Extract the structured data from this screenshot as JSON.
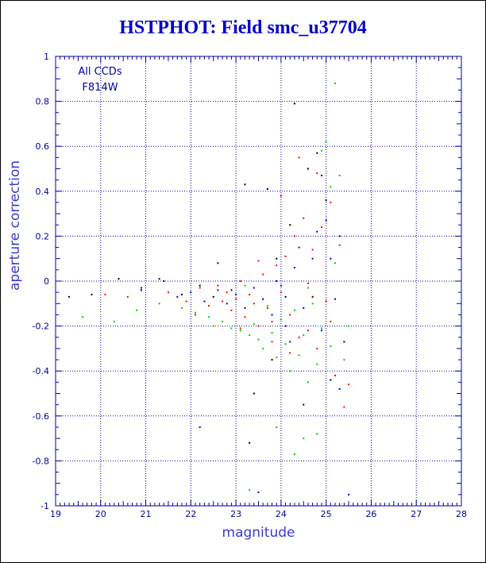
{
  "colors": {
    "axis": "#0000aa",
    "grid": "#0000aa",
    "title": "#0000cc",
    "red": "#ff0000",
    "green": "#00cc00",
    "blue": "#0000cc",
    "black": "#000000"
  },
  "chart_data": {
    "type": "scatter",
    "title": "HSTPHOT: Field smc_u37704",
    "xlabel": "magnitude",
    "ylabel": "aperture correction",
    "xlim": [
      19,
      28
    ],
    "ylim": [
      -1,
      1
    ],
    "x_ticks": [
      "19",
      "20",
      "21",
      "22",
      "23",
      "24",
      "25",
      "26",
      "27",
      "28"
    ],
    "y_ticks": [
      "-1",
      "-0.8",
      "-0.6",
      "-0.4",
      "-0.2",
      "0",
      "0.2",
      "0.4",
      "0.6",
      "0.8",
      "1"
    ],
    "grid": "dotted",
    "annotations": [
      "All CCDs",
      "F814W"
    ],
    "series": [
      {
        "color": "red",
        "points": [
          [
            20.1,
            -0.06
          ],
          [
            20.6,
            -0.07
          ],
          [
            21.5,
            -0.05
          ],
          [
            21.9,
            -0.09
          ],
          [
            22.2,
            -0.03
          ],
          [
            22.4,
            -0.11
          ],
          [
            22.6,
            -0.02
          ],
          [
            22.8,
            -0.05
          ],
          [
            22.9,
            -0.13
          ],
          [
            23.0,
            -0.08
          ],
          [
            23.1,
            0.0
          ],
          [
            23.2,
            -0.16
          ],
          [
            23.3,
            -0.06
          ],
          [
            23.4,
            -0.1
          ],
          [
            23.5,
            -0.2
          ],
          [
            23.6,
            0.03
          ],
          [
            23.7,
            -0.12
          ],
          [
            23.8,
            -0.18
          ],
          [
            23.9,
            0.07
          ],
          [
            24.0,
            -0.05
          ],
          [
            24.1,
            0.11
          ],
          [
            24.2,
            -0.15
          ],
          [
            24.3,
            0.2
          ],
          [
            24.4,
            -0.25
          ],
          [
            24.5,
            0.28
          ],
          [
            24.6,
            -0.01
          ],
          [
            24.7,
            0.14
          ],
          [
            24.8,
            -0.3
          ],
          [
            24.9,
            0.24
          ],
          [
            25.0,
            -0.09
          ],
          [
            25.1,
            0.35
          ],
          [
            25.2,
            -0.42
          ],
          [
            25.3,
            0.16
          ],
          [
            25.4,
            -0.56
          ],
          [
            25.5,
            -0.46
          ],
          [
            24.0,
            0.38
          ],
          [
            24.4,
            0.55
          ],
          [
            24.8,
            0.48
          ],
          [
            25.1,
            -0.18
          ],
          [
            23.8,
            -0.27
          ],
          [
            24.2,
            -0.32
          ],
          [
            24.6,
            -0.22
          ],
          [
            22.1,
            -0.15
          ],
          [
            22.7,
            -0.09
          ],
          [
            23.5,
            0.09
          ],
          [
            23.1,
            -0.21
          ]
        ]
      },
      {
        "color": "green",
        "points": [
          [
            19.6,
            -0.16
          ],
          [
            20.3,
            -0.18
          ],
          [
            20.8,
            -0.13
          ],
          [
            21.3,
            -0.1
          ],
          [
            21.8,
            -0.12
          ],
          [
            22.1,
            -0.14
          ],
          [
            22.4,
            -0.16
          ],
          [
            22.7,
            -0.18
          ],
          [
            22.9,
            -0.21
          ],
          [
            23.1,
            -0.22
          ],
          [
            23.3,
            -0.24
          ],
          [
            23.4,
            -0.19
          ],
          [
            23.5,
            -0.26
          ],
          [
            23.6,
            -0.3
          ],
          [
            23.7,
            -0.11
          ],
          [
            23.8,
            -0.23
          ],
          [
            23.9,
            -0.34
          ],
          [
            24.0,
            -0.17
          ],
          [
            24.1,
            -0.28
          ],
          [
            24.2,
            -0.4
          ],
          [
            24.3,
            -0.13
          ],
          [
            24.4,
            -0.33
          ],
          [
            24.5,
            -0.24
          ],
          [
            24.6,
            -0.45
          ],
          [
            24.7,
            -0.1
          ],
          [
            24.8,
            -0.37
          ],
          [
            24.9,
            -0.21
          ],
          [
            25.0,
            0.62
          ],
          [
            25.1,
            -0.29
          ],
          [
            25.2,
            0.88
          ],
          [
            25.3,
            0.47
          ],
          [
            25.4,
            -0.35
          ],
          [
            25.5,
            -0.2
          ],
          [
            24.9,
            0.58
          ],
          [
            25.1,
            0.42
          ],
          [
            24.8,
            -0.68
          ],
          [
            24.5,
            -0.7
          ],
          [
            24.3,
            -0.77
          ],
          [
            23.3,
            -0.93
          ],
          [
            23.9,
            -0.65
          ],
          [
            22.5,
            -0.2
          ],
          [
            23.2,
            -0.02
          ],
          [
            23.6,
            -0.08
          ],
          [
            24.6,
            -0.03
          ],
          [
            25.2,
            0.08
          ]
        ]
      },
      {
        "color": "blue",
        "points": [
          [
            20.9,
            -0.03
          ],
          [
            21.4,
            0.0
          ],
          [
            21.7,
            -0.07
          ],
          [
            22.0,
            -0.05
          ],
          [
            22.3,
            -0.09
          ],
          [
            22.6,
            -0.04
          ],
          [
            22.8,
            -0.1
          ],
          [
            23.0,
            -0.06
          ],
          [
            23.2,
            -0.12
          ],
          [
            23.4,
            -0.03
          ],
          [
            23.6,
            -0.08
          ],
          [
            23.8,
            -0.15
          ],
          [
            24.0,
            -0.02
          ],
          [
            24.1,
            -0.2
          ],
          [
            24.3,
            0.06
          ],
          [
            24.5,
            -0.12
          ],
          [
            24.7,
            0.1
          ],
          [
            24.9,
            -0.22
          ],
          [
            25.0,
            0.27
          ],
          [
            25.2,
            -0.08
          ],
          [
            25.3,
            -0.48
          ],
          [
            25.5,
            -0.95
          ],
          [
            24.8,
            0.22
          ],
          [
            24.4,
            0.15
          ],
          [
            23.5,
            -0.94
          ],
          [
            22.2,
            -0.65
          ],
          [
            23.9,
            0.0
          ],
          [
            24.2,
            -0.27
          ],
          [
            25.1,
            0.1
          ]
        ]
      },
      {
        "color": "black",
        "points": [
          [
            19.3,
            -0.07
          ],
          [
            19.8,
            -0.06
          ],
          [
            20.4,
            0.01
          ],
          [
            20.9,
            -0.04
          ],
          [
            21.3,
            0.01
          ],
          [
            21.8,
            -0.06
          ],
          [
            22.2,
            -0.02
          ],
          [
            22.5,
            -0.07
          ],
          [
            22.9,
            -0.04
          ],
          [
            23.2,
            0.43
          ],
          [
            23.4,
            -0.5
          ],
          [
            23.7,
            0.41
          ],
          [
            24.1,
            -0.07
          ],
          [
            24.3,
            0.79
          ],
          [
            24.6,
            0.5
          ],
          [
            24.8,
            0.57
          ],
          [
            24.9,
            0.47
          ],
          [
            25.0,
            0.36
          ],
          [
            25.1,
            -0.44
          ],
          [
            25.3,
            0.2
          ],
          [
            24.2,
            0.25
          ],
          [
            24.5,
            -0.55
          ],
          [
            23.3,
            -0.72
          ],
          [
            24.7,
            -0.07
          ],
          [
            23.9,
            0.1
          ],
          [
            22.6,
            0.08
          ],
          [
            23.8,
            -0.35
          ],
          [
            25.4,
            -0.27
          ]
        ]
      }
    ]
  }
}
